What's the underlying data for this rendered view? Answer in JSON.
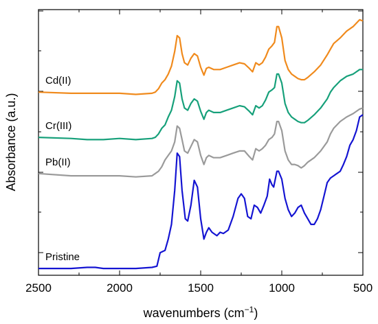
{
  "chart_data": {
    "type": "line",
    "title": "",
    "xlabel": "wavenumbers (cm",
    "xlabel_sup": "−1",
    "xlabel_close": ")",
    "ylabel": "Absorbance (a.u.)",
    "xlim": [
      2500,
      500
    ],
    "x_reversed": true,
    "xticks": [
      2500,
      2000,
      1500,
      1000,
      500
    ],
    "y_tick_labels_shown": false,
    "grid": false,
    "series": [
      {
        "name": "Pristine",
        "color": "#1414d2",
        "points": [
          [
            2500,
            0.06
          ],
          [
            2300,
            0.06
          ],
          [
            2200,
            0.07
          ],
          [
            2150,
            0.07
          ],
          [
            2100,
            0.06
          ],
          [
            1900,
            0.06
          ],
          [
            1800,
            0.07
          ],
          [
            1770,
            0.08
          ],
          [
            1750,
            0.2
          ],
          [
            1720,
            0.22
          ],
          [
            1700,
            0.32
          ],
          [
            1680,
            0.45
          ],
          [
            1660,
            0.75
          ],
          [
            1645,
            1.08
          ],
          [
            1630,
            1.05
          ],
          [
            1615,
            0.75
          ],
          [
            1595,
            0.5
          ],
          [
            1580,
            0.48
          ],
          [
            1560,
            0.62
          ],
          [
            1540,
            0.84
          ],
          [
            1520,
            0.78
          ],
          [
            1500,
            0.5
          ],
          [
            1480,
            0.32
          ],
          [
            1465,
            0.38
          ],
          [
            1450,
            0.42
          ],
          [
            1430,
            0.38
          ],
          [
            1400,
            0.35
          ],
          [
            1380,
            0.38
          ],
          [
            1360,
            0.37
          ],
          [
            1330,
            0.4
          ],
          [
            1300,
            0.52
          ],
          [
            1270,
            0.68
          ],
          [
            1250,
            0.72
          ],
          [
            1230,
            0.68
          ],
          [
            1210,
            0.52
          ],
          [
            1190,
            0.5
          ],
          [
            1170,
            0.62
          ],
          [
            1150,
            0.6
          ],
          [
            1130,
            0.55
          ],
          [
            1110,
            0.62
          ],
          [
            1090,
            0.7
          ],
          [
            1075,
            0.85
          ],
          [
            1060,
            0.8
          ],
          [
            1050,
            0.78
          ],
          [
            1030,
            0.92
          ],
          [
            1020,
            0.92
          ],
          [
            1000,
            0.85
          ],
          [
            980,
            0.68
          ],
          [
            960,
            0.58
          ],
          [
            940,
            0.52
          ],
          [
            920,
            0.55
          ],
          [
            900,
            0.6
          ],
          [
            880,
            0.62
          ],
          [
            860,
            0.55
          ],
          [
            840,
            0.5
          ],
          [
            820,
            0.45
          ],
          [
            800,
            0.45
          ],
          [
            780,
            0.5
          ],
          [
            760,
            0.58
          ],
          [
            740,
            0.7
          ],
          [
            720,
            0.82
          ],
          [
            700,
            0.86
          ],
          [
            680,
            0.88
          ],
          [
            660,
            0.9
          ],
          [
            640,
            0.92
          ],
          [
            620,
            0.98
          ],
          [
            600,
            1.05
          ],
          [
            580,
            1.15
          ],
          [
            560,
            1.2
          ],
          [
            540,
            1.28
          ],
          [
            520,
            1.4
          ],
          [
            500,
            1.42
          ]
        ]
      },
      {
        "name": "Pb(II)",
        "color": "#9a9a9a",
        "points": [
          [
            2500,
            0.9
          ],
          [
            2300,
            0.88
          ],
          [
            2200,
            0.88
          ],
          [
            2100,
            0.88
          ],
          [
            2000,
            0.88
          ],
          [
            1900,
            0.87
          ],
          [
            1800,
            0.88
          ],
          [
            1780,
            0.9
          ],
          [
            1760,
            0.92
          ],
          [
            1740,
            0.96
          ],
          [
            1720,
            1.02
          ],
          [
            1700,
            1.06
          ],
          [
            1680,
            1.1
          ],
          [
            1660,
            1.18
          ],
          [
            1645,
            1.32
          ],
          [
            1630,
            1.3
          ],
          [
            1615,
            1.2
          ],
          [
            1600,
            1.1
          ],
          [
            1580,
            1.08
          ],
          [
            1560,
            1.14
          ],
          [
            1540,
            1.2
          ],
          [
            1520,
            1.18
          ],
          [
            1500,
            1.06
          ],
          [
            1480,
            0.98
          ],
          [
            1465,
            1.04
          ],
          [
            1450,
            1.06
          ],
          [
            1420,
            1.04
          ],
          [
            1380,
            1.04
          ],
          [
            1340,
            1.06
          ],
          [
            1300,
            1.08
          ],
          [
            1260,
            1.1
          ],
          [
            1230,
            1.1
          ],
          [
            1200,
            1.05
          ],
          [
            1180,
            1.02
          ],
          [
            1160,
            1.12
          ],
          [
            1140,
            1.1
          ],
          [
            1120,
            1.12
          ],
          [
            1100,
            1.15
          ],
          [
            1080,
            1.2
          ],
          [
            1060,
            1.22
          ],
          [
            1045,
            1.25
          ],
          [
            1030,
            1.36
          ],
          [
            1020,
            1.36
          ],
          [
            1000,
            1.28
          ],
          [
            980,
            1.1
          ],
          [
            960,
            1.02
          ],
          [
            940,
            0.98
          ],
          [
            920,
            0.98
          ],
          [
            900,
            0.97
          ],
          [
            880,
            0.95
          ],
          [
            860,
            0.97
          ],
          [
            840,
            1.0
          ],
          [
            800,
            1.04
          ],
          [
            760,
            1.1
          ],
          [
            720,
            1.18
          ],
          [
            700,
            1.25
          ],
          [
            680,
            1.3
          ],
          [
            640,
            1.36
          ],
          [
            600,
            1.4
          ],
          [
            560,
            1.43
          ],
          [
            520,
            1.47
          ],
          [
            500,
            1.48
          ]
        ]
      },
      {
        "name": "Cr(III)",
        "color": "#16a07a",
        "points": [
          [
            2500,
            1.22
          ],
          [
            2300,
            1.21
          ],
          [
            2200,
            1.2
          ],
          [
            2100,
            1.2
          ],
          [
            2000,
            1.21
          ],
          [
            1900,
            1.2
          ],
          [
            1800,
            1.21
          ],
          [
            1780,
            1.22
          ],
          [
            1760,
            1.25
          ],
          [
            1740,
            1.3
          ],
          [
            1720,
            1.33
          ],
          [
            1700,
            1.4
          ],
          [
            1680,
            1.46
          ],
          [
            1660,
            1.58
          ],
          [
            1645,
            1.72
          ],
          [
            1630,
            1.7
          ],
          [
            1615,
            1.56
          ],
          [
            1600,
            1.48
          ],
          [
            1580,
            1.46
          ],
          [
            1560,
            1.52
          ],
          [
            1540,
            1.56
          ],
          [
            1520,
            1.54
          ],
          [
            1500,
            1.45
          ],
          [
            1480,
            1.38
          ],
          [
            1465,
            1.44
          ],
          [
            1450,
            1.46
          ],
          [
            1420,
            1.44
          ],
          [
            1380,
            1.44
          ],
          [
            1340,
            1.46
          ],
          [
            1300,
            1.48
          ],
          [
            1260,
            1.5
          ],
          [
            1230,
            1.49
          ],
          [
            1200,
            1.45
          ],
          [
            1180,
            1.42
          ],
          [
            1160,
            1.5
          ],
          [
            1140,
            1.48
          ],
          [
            1120,
            1.5
          ],
          [
            1100,
            1.55
          ],
          [
            1080,
            1.62
          ],
          [
            1060,
            1.64
          ],
          [
            1045,
            1.66
          ],
          [
            1030,
            1.78
          ],
          [
            1020,
            1.78
          ],
          [
            1000,
            1.7
          ],
          [
            980,
            1.52
          ],
          [
            960,
            1.44
          ],
          [
            940,
            1.4
          ],
          [
            920,
            1.38
          ],
          [
            900,
            1.36
          ],
          [
            880,
            1.35
          ],
          [
            860,
            1.35
          ],
          [
            840,
            1.37
          ],
          [
            800,
            1.42
          ],
          [
            760,
            1.48
          ],
          [
            720,
            1.56
          ],
          [
            700,
            1.62
          ],
          [
            680,
            1.66
          ],
          [
            640,
            1.72
          ],
          [
            600,
            1.76
          ],
          [
            560,
            1.78
          ],
          [
            520,
            1.82
          ],
          [
            500,
            1.82
          ]
        ]
      },
      {
        "name": "Cd(II)",
        "color": "#f08a1c",
        "points": [
          [
            2500,
            1.62
          ],
          [
            2300,
            1.61
          ],
          [
            2200,
            1.61
          ],
          [
            2100,
            1.61
          ],
          [
            2000,
            1.61
          ],
          [
            1900,
            1.6
          ],
          [
            1800,
            1.61
          ],
          [
            1780,
            1.62
          ],
          [
            1760,
            1.65
          ],
          [
            1740,
            1.7
          ],
          [
            1720,
            1.73
          ],
          [
            1700,
            1.78
          ],
          [
            1680,
            1.85
          ],
          [
            1660,
            1.98
          ],
          [
            1645,
            2.12
          ],
          [
            1630,
            2.1
          ],
          [
            1615,
            1.96
          ],
          [
            1600,
            1.88
          ],
          [
            1580,
            1.86
          ],
          [
            1560,
            1.92
          ],
          [
            1540,
            1.96
          ],
          [
            1520,
            1.94
          ],
          [
            1500,
            1.84
          ],
          [
            1480,
            1.77
          ],
          [
            1465,
            1.83
          ],
          [
            1450,
            1.84
          ],
          [
            1420,
            1.82
          ],
          [
            1380,
            1.82
          ],
          [
            1340,
            1.84
          ],
          [
            1300,
            1.86
          ],
          [
            1260,
            1.88
          ],
          [
            1230,
            1.87
          ],
          [
            1200,
            1.83
          ],
          [
            1180,
            1.8
          ],
          [
            1160,
            1.88
          ],
          [
            1140,
            1.86
          ],
          [
            1120,
            1.88
          ],
          [
            1100,
            1.93
          ],
          [
            1080,
            2.0
          ],
          [
            1060,
            2.03
          ],
          [
            1045,
            2.06
          ],
          [
            1030,
            2.2
          ],
          [
            1020,
            2.2
          ],
          [
            1000,
            2.1
          ],
          [
            980,
            1.9
          ],
          [
            960,
            1.82
          ],
          [
            940,
            1.78
          ],
          [
            920,
            1.76
          ],
          [
            900,
            1.74
          ],
          [
            880,
            1.73
          ],
          [
            860,
            1.73
          ],
          [
            840,
            1.75
          ],
          [
            800,
            1.8
          ],
          [
            760,
            1.86
          ],
          [
            720,
            1.95
          ],
          [
            700,
            2.0
          ],
          [
            680,
            2.05
          ],
          [
            640,
            2.1
          ],
          [
            600,
            2.16
          ],
          [
            560,
            2.2
          ],
          [
            520,
            2.26
          ],
          [
            500,
            2.25
          ]
        ]
      }
    ],
    "labels": [
      {
        "series": "Cd(II)",
        "text": "Cd(II)"
      },
      {
        "series": "Cr(III)",
        "text": "Cr(III)"
      },
      {
        "series": "Pb(II)",
        "text": "Pb(II)"
      },
      {
        "series": "Pristine",
        "text": "Pristine"
      }
    ]
  }
}
